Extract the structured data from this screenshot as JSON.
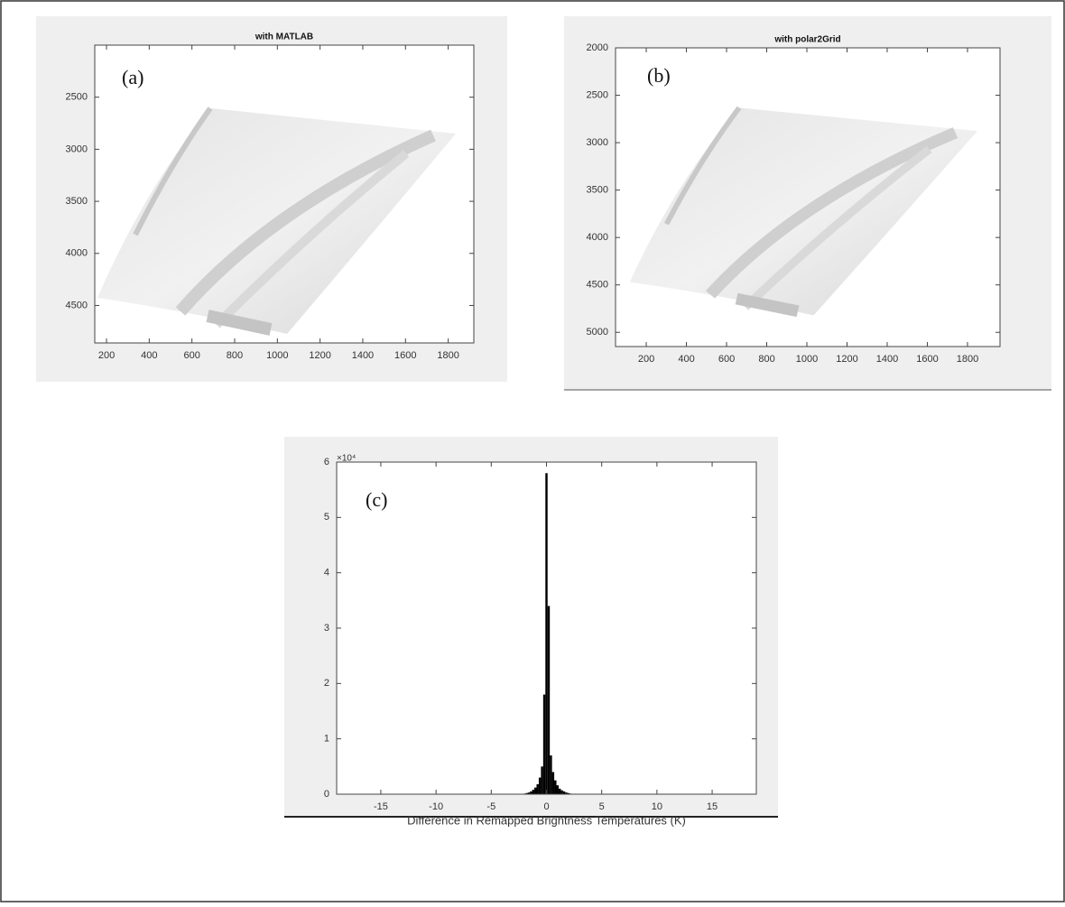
{
  "chart_data": [
    {
      "type": "image",
      "title": "with MATLAB",
      "annotation": "(a)",
      "xlim": [
        145,
        1920
      ],
      "xticks": [
        200,
        400,
        600,
        800,
        1000,
        1200,
        1400,
        1600,
        1800
      ],
      "ylim": [
        2000,
        4860
      ],
      "yticks": [
        2500,
        3000,
        3500,
        4000,
        4500
      ],
      "y_reversed": true
    },
    {
      "type": "image",
      "title": "with polar2Grid",
      "annotation": "(b)",
      "xlim": [
        47,
        1962
      ],
      "xticks": [
        200,
        400,
        600,
        800,
        1000,
        1200,
        1400,
        1600,
        1800
      ],
      "ylim": [
        2000,
        5150
      ],
      "yticks": [
        2000,
        2500,
        3000,
        3500,
        4000,
        4500,
        5000
      ],
      "y_reversed": true
    },
    {
      "type": "histogram",
      "annotation": "(c)",
      "xlabel": "Difference in Remapped Brightness Temperatures (K)",
      "y_multiplier": "×10⁴",
      "color": "#000000",
      "bins": [
        -2.1,
        -1.9,
        -1.7,
        -1.5,
        -1.3,
        -1.1,
        -0.9,
        -0.7,
        -0.5,
        -0.3,
        -0.1,
        0.1,
        0.3,
        0.5,
        0.7,
        0.9,
        1.1,
        1.3,
        1.5,
        1.7,
        1.9,
        2.1,
        2.3
      ],
      "values": [
        0.01,
        0.02,
        0.03,
        0.05,
        0.08,
        0.12,
        0.18,
        0.3,
        0.5,
        1.8,
        5.8,
        3.4,
        0.7,
        0.4,
        0.25,
        0.16,
        0.1,
        0.07,
        0.05,
        0.03,
        0.02,
        0.01
      ],
      "xlim": [
        -19,
        19
      ],
      "xticks": [
        -15,
        -10,
        -5,
        0,
        5,
        10,
        15
      ],
      "ylim": [
        0,
        6
      ],
      "yticks": [
        0,
        1,
        2,
        3,
        4,
        5,
        6
      ]
    }
  ]
}
